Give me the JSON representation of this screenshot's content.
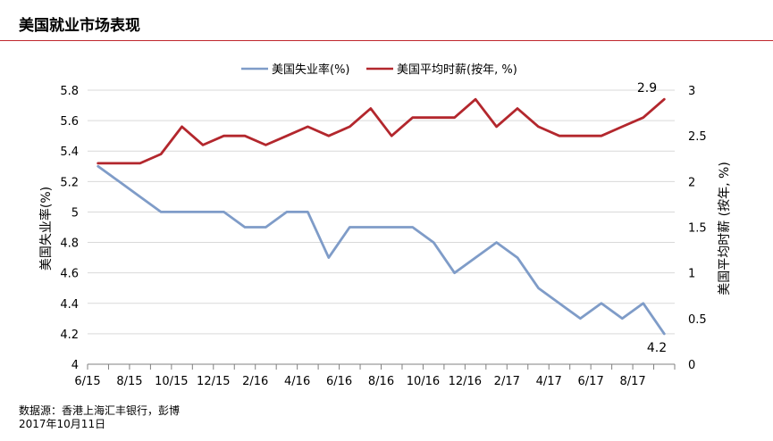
{
  "page": {
    "title": "美国就业市场表现",
    "source": "数据源：香港上海汇丰银行，彭博",
    "date": "2017年10月11日"
  },
  "colors": {
    "unemployment": "#7f9cc8",
    "wage": "#b3272d",
    "grid": "#d9d9d9",
    "accent": "#c0272d"
  },
  "chart_data": {
    "type": "line",
    "x": [
      "6/15",
      "7/15",
      "8/15",
      "9/15",
      "10/15",
      "11/15",
      "12/15",
      "1/16",
      "2/16",
      "3/16",
      "4/16",
      "5/16",
      "6/16",
      "7/16",
      "8/16",
      "9/16",
      "10/16",
      "11/16",
      "12/16",
      "1/17",
      "2/17",
      "3/17",
      "4/17",
      "5/17",
      "6/17",
      "7/17",
      "8/17",
      "9/17"
    ],
    "x_tick_labels": [
      "6/15",
      "8/15",
      "10/15",
      "12/15",
      "2/16",
      "4/16",
      "6/16",
      "8/16",
      "10/16",
      "12/16",
      "2/17",
      "4/17",
      "6/17",
      "8/17"
    ],
    "series": [
      {
        "name": "美国失业率(%)",
        "axis": "left",
        "values": [
          5.3,
          5.2,
          5.1,
          5.0,
          5.0,
          5.0,
          5.0,
          4.9,
          4.9,
          5.0,
          5.0,
          4.7,
          4.9,
          4.9,
          4.9,
          4.9,
          4.8,
          4.6,
          4.7,
          4.8,
          4.7,
          4.5,
          4.4,
          4.3,
          4.4,
          4.3,
          4.4,
          4.2
        ]
      },
      {
        "name": "美国平均时薪(按年, %)",
        "axis": "right",
        "values": [
          2.2,
          2.2,
          2.2,
          2.3,
          2.6,
          2.4,
          2.5,
          2.5,
          2.4,
          2.5,
          2.6,
          2.5,
          2.6,
          2.8,
          2.5,
          2.7,
          2.7,
          2.7,
          2.9,
          2.6,
          2.8,
          2.6,
          2.5,
          2.5,
          2.5,
          2.6,
          2.7,
          2.9
        ]
      }
    ],
    "ylabel": "美国失业率(%)",
    "y2label": "美国平均时薪 (按年, %)",
    "ylim": [
      4,
      5.8
    ],
    "y_ticks": [
      "5.8",
      "5.6",
      "5.4",
      "5.2",
      "5",
      "4.8",
      "4.6",
      "4.4",
      "4.2",
      "4"
    ],
    "y2lim": [
      0,
      3
    ],
    "y2_ticks": [
      "3",
      "2.5",
      "2",
      "1.5",
      "1",
      "0.5",
      "0"
    ],
    "annotations": {
      "wage_last": "2.9",
      "unemployment_last": "4.2"
    },
    "grid": true,
    "legend": "top-center"
  }
}
